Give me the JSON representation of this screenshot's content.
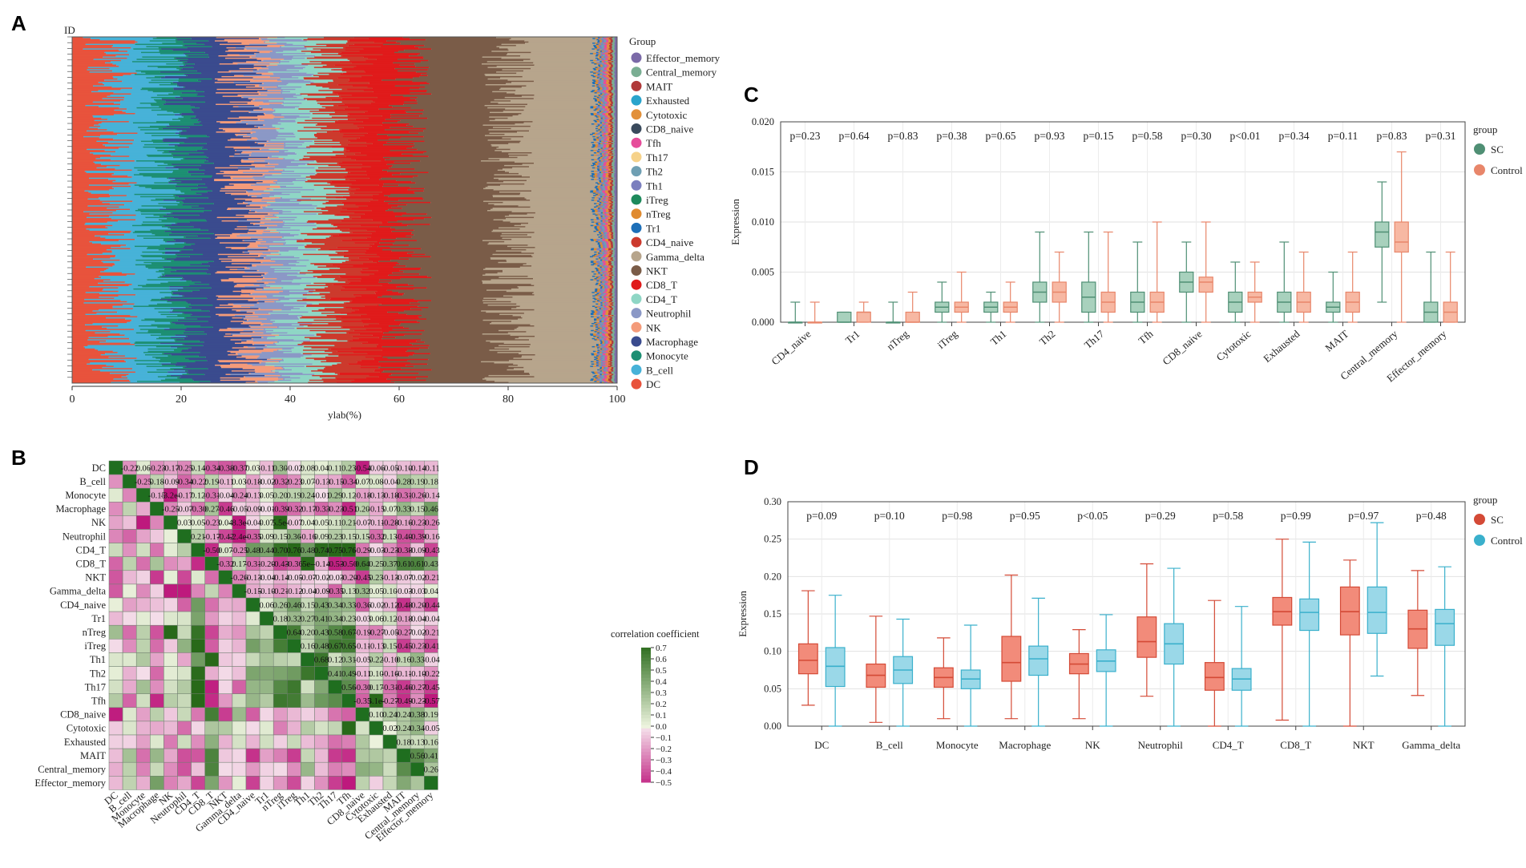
{
  "panels": {
    "a": "A",
    "b": "B",
    "c": "C",
    "d": "D"
  },
  "chart_data": [
    {
      "panel": "A",
      "type": "bar",
      "orientation": "horizontal-stacked",
      "ylabel": "ID",
      "xlabel": "ylab(%)",
      "xlim": [
        0,
        100
      ],
      "xticks": [
        "0",
        "20",
        "40",
        "60",
        "80",
        "100"
      ],
      "samples_approx": 300,
      "legend_title": "Group",
      "stack_order": [
        "DC",
        "B_cell",
        "Monocyte",
        "Macrophage",
        "NK",
        "Neutrophil",
        "CD4_T",
        "CD8_T",
        "NKT",
        "Gamma_delta",
        "CD4_naive",
        "Tr1",
        "nTreg",
        "iTreg",
        "Th1",
        "Th2",
        "Th17",
        "Tfh",
        "CD8_naive",
        "Cytotoxic",
        "Exhausted",
        "MAIT",
        "Central_memory",
        "Effector_memory"
      ],
      "legend": [
        {
          "label": "Effector_memory",
          "color": "#7b6aa8"
        },
        {
          "label": "Central_memory",
          "color": "#7aae93"
        },
        {
          "label": "MAIT",
          "color": "#b03a3a"
        },
        {
          "label": "Exhausted",
          "color": "#2aa4cc"
        },
        {
          "label": "Cytotoxic",
          "color": "#e2903a"
        },
        {
          "label": "CD8_naive",
          "color": "#3a4a5c"
        },
        {
          "label": "Tfh",
          "color": "#e64d9a"
        },
        {
          "label": "Th17",
          "color": "#f6d28a"
        },
        {
          "label": "Th2",
          "color": "#6f9fb3"
        },
        {
          "label": "Th1",
          "color": "#7b7fbe"
        },
        {
          "label": "iTreg",
          "color": "#1e8a5c"
        },
        {
          "label": "nTreg",
          "color": "#e08b30"
        },
        {
          "label": "Tr1",
          "color": "#1d6fb8"
        },
        {
          "label": "CD4_naive",
          "color": "#cc3a2d"
        },
        {
          "label": "Gamma_delta",
          "color": "#b7a58c"
        },
        {
          "label": "NKT",
          "color": "#7a5c48"
        },
        {
          "label": "CD8_T",
          "color": "#e01b1b"
        },
        {
          "label": "CD4_T",
          "color": "#8fd6c5"
        },
        {
          "label": "Neutrophil",
          "color": "#8b98c6"
        },
        {
          "label": "NK",
          "color": "#f49b7a"
        },
        {
          "label": "Macrophage",
          "color": "#3a4b8e"
        },
        {
          "label": "Monocyte",
          "color": "#1d8f73"
        },
        {
          "label": "B_cell",
          "color": "#47b2d8"
        },
        {
          "label": "DC",
          "color": "#e8533c"
        }
      ],
      "cumulative_boundaries_approx": [
        7,
        16,
        21,
        31,
        34,
        40,
        46,
        52,
        61,
        80,
        96,
        100
      ]
    },
    {
      "panel": "B",
      "type": "heatmap",
      "title": "",
      "labels": [
        "DC",
        "B_cell",
        "Monocyte",
        "Macrophage",
        "NK",
        "Neutrophil",
        "CD4_T",
        "CD8_T",
        "NKT",
        "Gamma_delta",
        "CD4_naive",
        "Tr1",
        "nTreg",
        "iTreg",
        "Th1",
        "Th2",
        "Th17",
        "Tfh",
        "CD8_naive",
        "Cytotoxic",
        "Exhausted",
        "MAIT",
        "Central_memory",
        "Effector_memory"
      ],
      "legend_title": "correlation coefficient",
      "colorbar_ticks": [
        "0.7",
        "0.6",
        "0.5",
        "0.4",
        "0.3",
        "0.2",
        "0.1",
        "0.0",
        "−0.1",
        "−0.2",
        "−0.3",
        "−0.4",
        "−0.5"
      ],
      "range": [
        -0.5,
        0.7
      ],
      "upper_text": [
        [
          "-0.22",
          "0.06",
          "-0.23",
          "-0.17",
          "-0.25",
          "0.14",
          "-0.34",
          "-0.38",
          "-0.37",
          "0.03",
          "-0.11",
          "0.30",
          "-0.02",
          "0.08",
          "0.04",
          "0.11",
          "0.23",
          "-0.54",
          "-0.06",
          "-0.05",
          "-0.10",
          "-0.14",
          "-0.11"
        ],
        [
          "-0.25",
          "0.18",
          "-0.09",
          "-0.34",
          "-0.22",
          "0.19",
          "-0.11",
          "0.03",
          "-0.18",
          "-0.02",
          "-0.32",
          "-0.23",
          "0.07",
          "-0.13",
          "-0.15",
          "-0.34",
          "0.07",
          "0.08",
          "-0.04",
          "0.28",
          "0.19",
          "0.18"
        ],
        [
          "-0.15",
          "-3.2e-",
          "-0.17",
          "0.12",
          "-0.31",
          "-0.04",
          "-0.24",
          "-0.13",
          "0.05",
          "0.20",
          "0.19",
          "0.24",
          "-0.01",
          "0.29",
          "0.12",
          "-0.18",
          "-0.13",
          "-0.18",
          "-0.31",
          "-0.26",
          "-0.14"
        ],
        [
          "-0.25",
          "-0.07",
          "-0.30",
          "0.27",
          "-0.46",
          "-0.05",
          "-0.09",
          "-0.01",
          "-0.39",
          "-0.32",
          "-0.17",
          "-0.33",
          "-0.23",
          "-0.51",
          "0.20",
          "-0.15",
          "0.07",
          "0.33",
          "0.15",
          "0.46"
        ],
        [
          "0.03",
          "0.05",
          "-0.23",
          "0.04",
          "-8.3e-",
          "-0.04",
          "0.07",
          "5.5e-",
          "-0.07",
          "0.04",
          "0.05",
          "0.11",
          "0.21",
          "-0.07",
          "-0.11",
          "-0.28",
          "-0.16",
          "-0.23",
          "-0.26"
        ],
        [
          "0.21",
          "-0.17",
          "-0.42",
          "-2.4e-",
          "-0.35",
          "0.09",
          "0.15",
          "0.36",
          "-0.16",
          "0.09",
          "0.23",
          "0.15",
          "0.15",
          "-0.32",
          "0.13",
          "-0.40",
          "-0.39",
          "-0.16"
        ],
        [
          "-0.50",
          "0.07",
          "-0.25",
          "0.48",
          "0.44",
          "0.70",
          "0.76",
          "0.48",
          "0.74",
          "0.75",
          "0.76",
          "-0.29",
          "-0.03",
          "-0.23",
          "-0.38",
          "-0.09",
          "-0.43"
        ],
        [
          "-0.32",
          "0.17",
          "-0.31",
          "-0.20",
          "-0.43",
          "-0.36",
          "5e-",
          "-0.14",
          "-0.53",
          "-0.50",
          "0.64",
          "0.25",
          "0.37",
          "0.61",
          "0.61",
          "0.43"
        ],
        [
          "-0.26",
          "-0.13",
          "-0.04",
          "-0.14",
          "-0.05",
          "-0.07",
          "-0.02",
          "-0.03",
          "-0.20",
          "-0.45",
          "0.23",
          "-0.13",
          "-0.07",
          "-0.02",
          "-0.21"
        ],
        [
          "-0.15",
          "-0.10",
          "-0.21",
          "-0.12",
          "-0.04",
          "-0.09",
          "-0.35",
          "0.13",
          "0.32",
          "0.05",
          "0.10",
          "-0.03",
          "-0.03",
          "0.04"
        ],
        [
          "0.06",
          "0.26",
          "0.46",
          "0.15",
          "0.43",
          "0.34",
          "0.33",
          "-0.36",
          "-0.02",
          "-0.12",
          "-0.48",
          "-0.20",
          "-0.44"
        ],
        [
          "0.18",
          "0.32",
          "0.27",
          "0.41",
          "0.34",
          "0.23",
          "-0.03",
          "0.06",
          "0.12",
          "-0.18",
          "-0.04",
          "-0.04"
        ],
        [
          "0.64",
          "0.20",
          "0.43",
          "0.58",
          "0.67",
          "-0.19",
          "-0.27",
          "-0.05",
          "-0.27",
          "-0.02",
          "-0.21"
        ],
        [
          "0.16",
          "0.48",
          "0.67",
          "0.65",
          "-0.11",
          "-0.13",
          "0.15",
          "-0.45",
          "-0.23",
          "-0.41"
        ],
        [
          "0.68",
          "0.12",
          "0.31",
          "-0.05",
          "0.22",
          "-0.10",
          "0.16",
          "0.33",
          "-0.04"
        ],
        [
          "0.41",
          "0.49",
          "-0.11",
          "0.10",
          "-0.16",
          "-0.11",
          "-0.10",
          "-0.22"
        ],
        [
          "0.56",
          "-0.30",
          "0.17",
          "-0.31",
          "-0.46",
          "-0.27",
          "-0.45"
        ],
        [
          "-0.35",
          "3.1e-",
          "-0.27",
          "-0.49",
          "-0.23",
          "-0.57"
        ],
        [
          "0.10",
          "0.24",
          "0.24",
          "0.38",
          "0.19"
        ],
        [
          "0.02",
          "0.24",
          "0.34",
          "-0.05"
        ],
        [
          "0.18",
          "0.13",
          "0.16"
        ],
        [
          "0.56",
          "0.41"
        ],
        [
          "0.26"
        ]
      ]
    },
    {
      "panel": "C",
      "type": "box",
      "ylabel": "Expression",
      "ylim": [
        0,
        0.02
      ],
      "yticks": [
        "0.000",
        "0.005",
        "0.010",
        "0.015",
        "0.020"
      ],
      "legend_title": "group",
      "categories": [
        "CD4_naive",
        "Tr1",
        "nTreg",
        "iTreg",
        "Th1",
        "Th2",
        "Th17",
        "Tfh",
        "CD8_naive",
        "Cytotoxic",
        "Exhausted",
        "MAIT",
        "Central_memory",
        "Effector_memory"
      ],
      "pvalues": [
        "p=0.23",
        "p=0.64",
        "p=0.83",
        "p=0.38",
        "p=0.65",
        "p=0.93",
        "p=0.15",
        "p=0.58",
        "p=0.30",
        "p<0.01",
        "p=0.34",
        "p=0.11",
        "p=0.83",
        "p=0.31"
      ],
      "series": [
        {
          "name": "SC",
          "fill": "#a8d1bd",
          "stroke": "#4f8f74",
          "boxes": [
            [
              0,
              0,
              0,
              0,
              0.002
            ],
            [
              0,
              0,
              0,
              0.001,
              0.001
            ],
            [
              0,
              0,
              0,
              0,
              0.002
            ],
            [
              0,
              0.001,
              0.0015,
              0.002,
              0.004
            ],
            [
              0,
              0.001,
              0.0015,
              0.002,
              0.003
            ],
            [
              0,
              0.002,
              0.003,
              0.004,
              0.009
            ],
            [
              0,
              0.001,
              0.0025,
              0.004,
              0.009
            ],
            [
              0,
              0.001,
              0.002,
              0.003,
              0.008
            ],
            [
              0,
              0.003,
              0.004,
              0.005,
              0.008
            ],
            [
              0,
              0.001,
              0.002,
              0.003,
              0.006
            ],
            [
              0,
              0.001,
              0.002,
              0.003,
              0.008
            ],
            [
              0,
              0.001,
              0.0015,
              0.002,
              0.005
            ],
            [
              0.002,
              0.0075,
              0.009,
              0.01,
              0.014
            ],
            [
              0,
              0,
              0.001,
              0.002,
              0.007
            ]
          ]
        },
        {
          "name": "Control",
          "fill": "#f7b8a3",
          "stroke": "#e8866a",
          "boxes": [
            [
              0,
              0,
              0,
              0,
              0.002
            ],
            [
              0,
              0,
              0.001,
              0.001,
              0.002
            ],
            [
              0,
              0,
              0,
              0.001,
              0.003
            ],
            [
              0,
              0.001,
              0.0015,
              0.002,
              0.005
            ],
            [
              0,
              0.001,
              0.0015,
              0.002,
              0.004
            ],
            [
              0,
              0.002,
              0.003,
              0.004,
              0.007
            ],
            [
              0,
              0.001,
              0.002,
              0.003,
              0.009
            ],
            [
              0,
              0.001,
              0.002,
              0.003,
              0.01
            ],
            [
              0,
              0.003,
              0.004,
              0.0045,
              0.01
            ],
            [
              0,
              0.002,
              0.0025,
              0.003,
              0.006
            ],
            [
              0,
              0.001,
              0.002,
              0.003,
              0.007
            ],
            [
              0,
              0.001,
              0.002,
              0.003,
              0.007
            ],
            [
              0,
              0.007,
              0.008,
              0.01,
              0.017
            ],
            [
              0,
              0,
              0.001,
              0.002,
              0.007
            ]
          ]
        }
      ]
    },
    {
      "panel": "D",
      "type": "box",
      "ylabel": "Expression",
      "ylim": [
        0,
        0.3
      ],
      "yticks": [
        "0.00",
        "0.05",
        "0.10",
        "0.15",
        "0.20",
        "0.25",
        "0.30"
      ],
      "legend_title": "group",
      "categories": [
        "DC",
        "B_cell",
        "Monocyte",
        "Macrophage",
        "NK",
        "Neutrophil",
        "CD4_T",
        "CD8_T",
        "NKT",
        "Gamma_delta"
      ],
      "pvalues": [
        "p=0.09",
        "p=0.10",
        "p=0.98",
        "p=0.95",
        "p<0.05",
        "p=0.29",
        "p=0.58",
        "p=0.99",
        "p=0.97",
        "p=0.48"
      ],
      "series": [
        {
          "name": "SC",
          "fill": "#f28b7a",
          "stroke": "#d44a36",
          "boxes": [
            [
              0.028,
              0.07,
              0.088,
              0.11,
              0.181
            ],
            [
              0.005,
              0.052,
              0.068,
              0.083,
              0.147
            ],
            [
              0.01,
              0.052,
              0.065,
              0.078,
              0.118
            ],
            [
              0.01,
              0.06,
              0.085,
              0.12,
              0.202
            ],
            [
              0.01,
              0.07,
              0.083,
              0.097,
              0.129
            ],
            [
              0.04,
              0.092,
              0.113,
              0.146,
              0.217
            ],
            [
              0,
              0.048,
              0.065,
              0.085,
              0.168
            ],
            [
              0.008,
              0.135,
              0.153,
              0.172,
              0.25
            ],
            [
              0,
              0.122,
              0.153,
              0.186,
              0.222
            ],
            [
              0.041,
              0.104,
              0.13,
              0.155,
              0.208
            ]
          ]
        },
        {
          "name": "Control",
          "fill": "#9ad8e8",
          "stroke": "#3ab0cc",
          "boxes": [
            [
              0,
              0.053,
              0.08,
              0.105,
              0.175
            ],
            [
              0,
              0.057,
              0.075,
              0.093,
              0.143
            ],
            [
              0,
              0.05,
              0.063,
              0.075,
              0.135
            ],
            [
              0,
              0.068,
              0.09,
              0.107,
              0.171
            ],
            [
              0,
              0.073,
              0.087,
              0.102,
              0.149
            ],
            [
              0,
              0.083,
              0.11,
              0.137,
              0.211
            ],
            [
              0,
              0.048,
              0.063,
              0.077,
              0.16
            ],
            [
              0,
              0.128,
              0.152,
              0.17,
              0.246
            ],
            [
              0.067,
              0.124,
              0.152,
              0.186,
              0.272
            ],
            [
              0,
              0.108,
              0.137,
              0.156,
              0.213
            ]
          ]
        }
      ]
    }
  ]
}
